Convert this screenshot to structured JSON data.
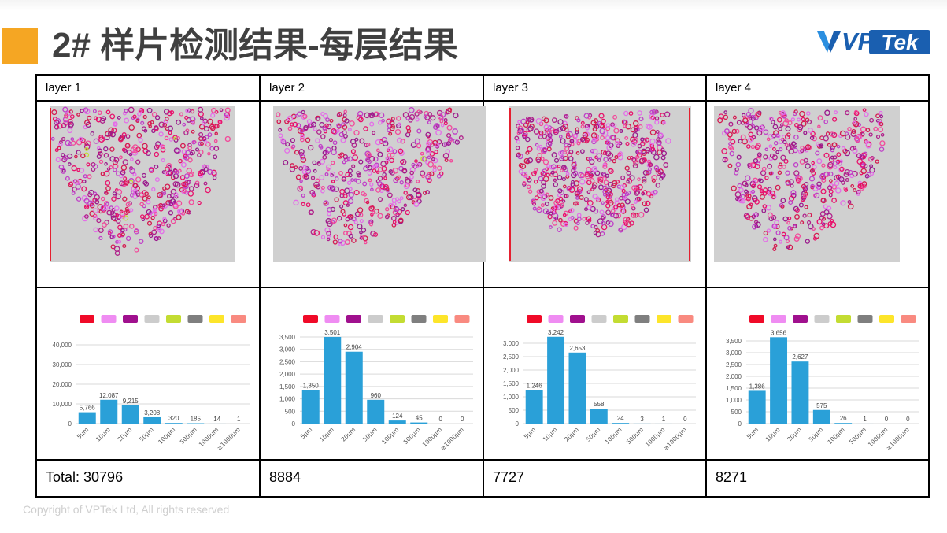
{
  "slide": {
    "title": "2# 样片检测结果-每层结果",
    "logo": {
      "left": "VP",
      "right": "Tek"
    },
    "copyright": "Copyright of VPTek Ltd, All rights reserved"
  },
  "colors": {
    "accent": "#f5a623",
    "brand_blue": "#1a5fb0",
    "bar": "#2aa0d8",
    "legend": [
      "#f00a28",
      "#ef8cf2",
      "#a0108e",
      "#cccccc",
      "#c3dc32",
      "#7f7f7f",
      "#fde52a",
      "#f98a80"
    ]
  },
  "table": {
    "headers": [
      "layer 1",
      "layer 2",
      "layer 3",
      "layer 4"
    ],
    "totals": [
      "Total: 30796",
      "8884",
      "7727",
      "8271"
    ]
  },
  "chart_data": [
    {
      "type": "bar",
      "categories": [
        "5μm",
        "10μm",
        "20μm",
        "50μm",
        "100μm",
        "500μm",
        "1000μm",
        "≥1000μm"
      ],
      "values": [
        5766,
        12087,
        9215,
        3208,
        320,
        185,
        14,
        1
      ],
      "value_labels": [
        "5,766",
        "12,087",
        "9,215",
        "3,208",
        "320",
        "185",
        "14",
        "1"
      ],
      "yticks": [
        "0",
        "10,000",
        "20,000",
        "30,000",
        "40,000"
      ],
      "ylim": [
        0,
        40000
      ]
    },
    {
      "type": "bar",
      "categories": [
        "5μm",
        "10μm",
        "20μm",
        "50μm",
        "100μm",
        "500μm",
        "1000μm",
        "≥1000μm"
      ],
      "values": [
        1350,
        3501,
        2904,
        960,
        124,
        45,
        0,
        0
      ],
      "value_labels": [
        "1,350",
        "3,501",
        "2,904",
        "960",
        "124",
        "45",
        "0",
        "0"
      ],
      "yticks": [
        "0",
        "500",
        "1,000",
        "1,500",
        "2,000",
        "2,500",
        "3,000",
        "3,500"
      ],
      "ylim": [
        0,
        3500
      ]
    },
    {
      "type": "bar",
      "categories": [
        "5μm",
        "10μm",
        "20μm",
        "50μm",
        "100μm",
        "500μm",
        "1000μm",
        "≥1000μm"
      ],
      "values": [
        1246,
        3242,
        2653,
        558,
        24,
        3,
        1,
        0
      ],
      "value_labels": [
        "1,246",
        "3,242",
        "2,653",
        "558",
        "24",
        "3",
        "1",
        "0"
      ],
      "yticks": [
        "0",
        "500",
        "1,000",
        "1,500",
        "2,000",
        "2,500",
        "3,000"
      ],
      "ylim": [
        0,
        3000
      ]
    },
    {
      "type": "bar",
      "categories": [
        "5μm",
        "10μm",
        "20μm",
        "50μm",
        "100μm",
        "500μm",
        "1000μm",
        "≥1000μm"
      ],
      "values": [
        1386,
        3656,
        2627,
        575,
        26,
        1,
        0,
        0
      ],
      "value_labels": [
        "1,386",
        "3,656",
        "2,627",
        "575",
        "26",
        "1",
        "0",
        "0"
      ],
      "yticks": [
        "0",
        "500",
        "1,000",
        "1,500",
        "2,000",
        "2,500",
        "3,000",
        "3,500"
      ],
      "ylim": [
        0,
        3500
      ]
    }
  ]
}
